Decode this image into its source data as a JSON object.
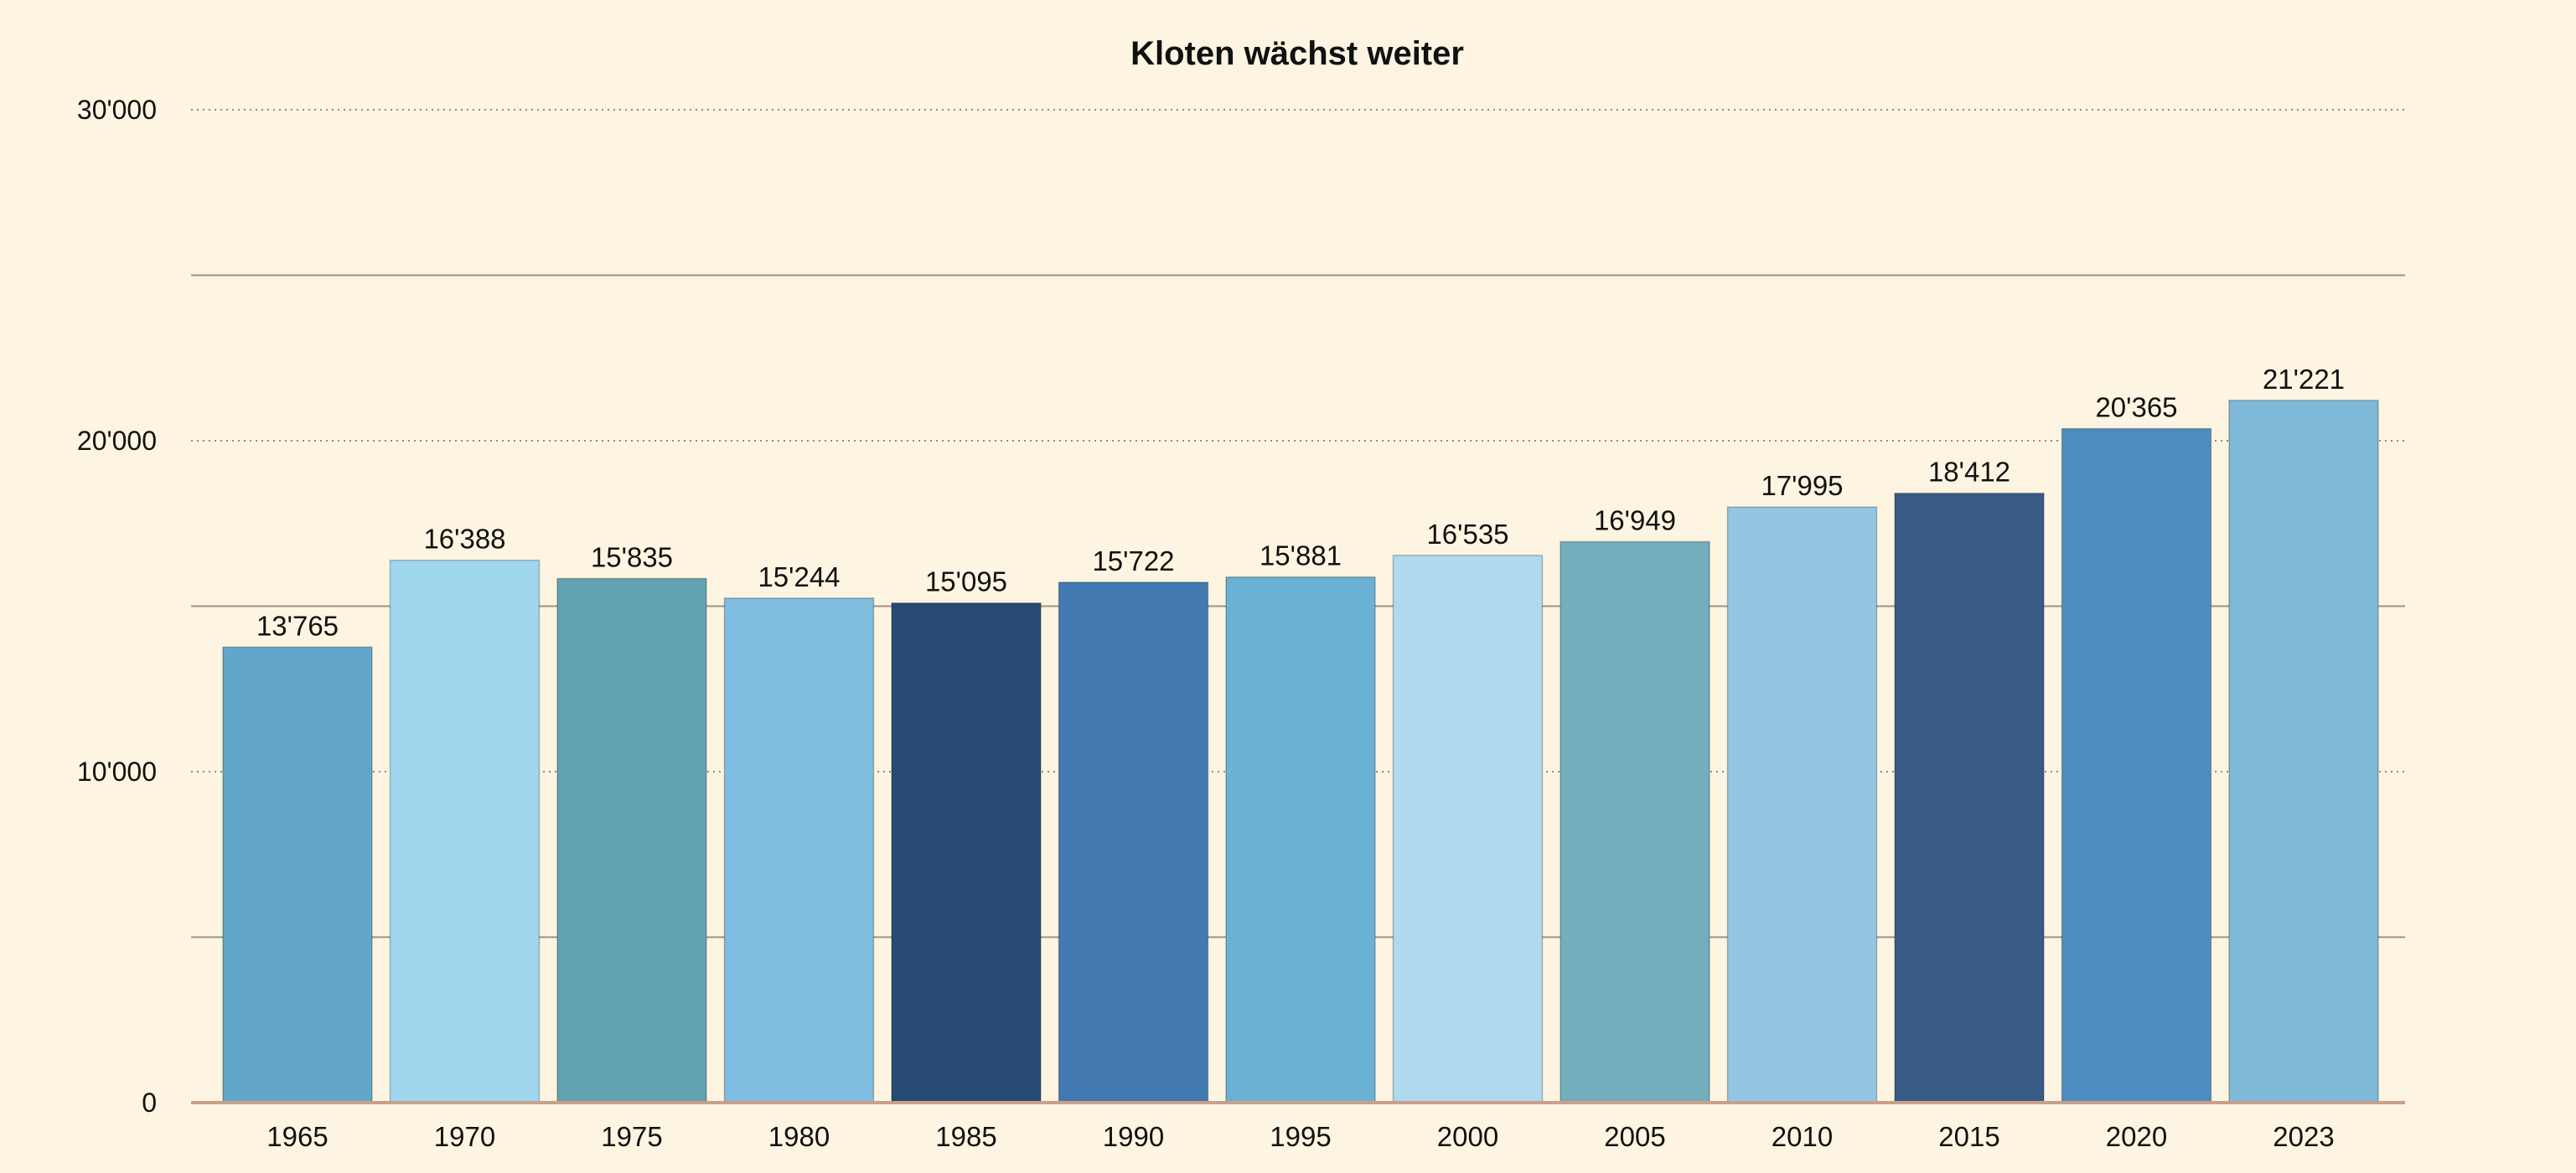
{
  "chart_data": {
    "type": "bar",
    "title": "Kloten wächst weiter",
    "xlabel": "",
    "ylabel": "",
    "ylim": [
      0,
      30000
    ],
    "yticks": [
      0,
      10000,
      20000,
      30000
    ],
    "ytick_labels": [
      "0",
      "10'000",
      "20'000",
      "30'000"
    ],
    "minor_gridlines": [
      5000,
      15000,
      25000
    ],
    "grid": true,
    "legend": "none",
    "categories": [
      "1965",
      "1970",
      "1975",
      "1980",
      "1985",
      "1990",
      "1995",
      "2000",
      "2005",
      "2010",
      "2015",
      "2020",
      "2023"
    ],
    "values": [
      13765,
      16388,
      15835,
      15244,
      15095,
      15722,
      15881,
      16535,
      16949,
      17995,
      18412,
      20365,
      21221
    ],
    "value_labels": [
      "13'765",
      "16'388",
      "15'835",
      "15'244",
      "15'095",
      "15'722",
      "15'881",
      "16'535",
      "16'949",
      "17'995",
      "18'412",
      "20'365",
      "21'221"
    ],
    "colors": [
      "#62a7cb",
      "#a1d6ef",
      "#62a3b3",
      "#80bde0",
      "#264a73",
      "#4279b0",
      "#6bb1d5",
      "#afdaee",
      "#73aebd",
      "#92c6e3",
      "#385b86",
      "#4f8cc0",
      "#7ebad8"
    ],
    "background": "#fdf5e1",
    "axis_color": "#c9a08c"
  }
}
